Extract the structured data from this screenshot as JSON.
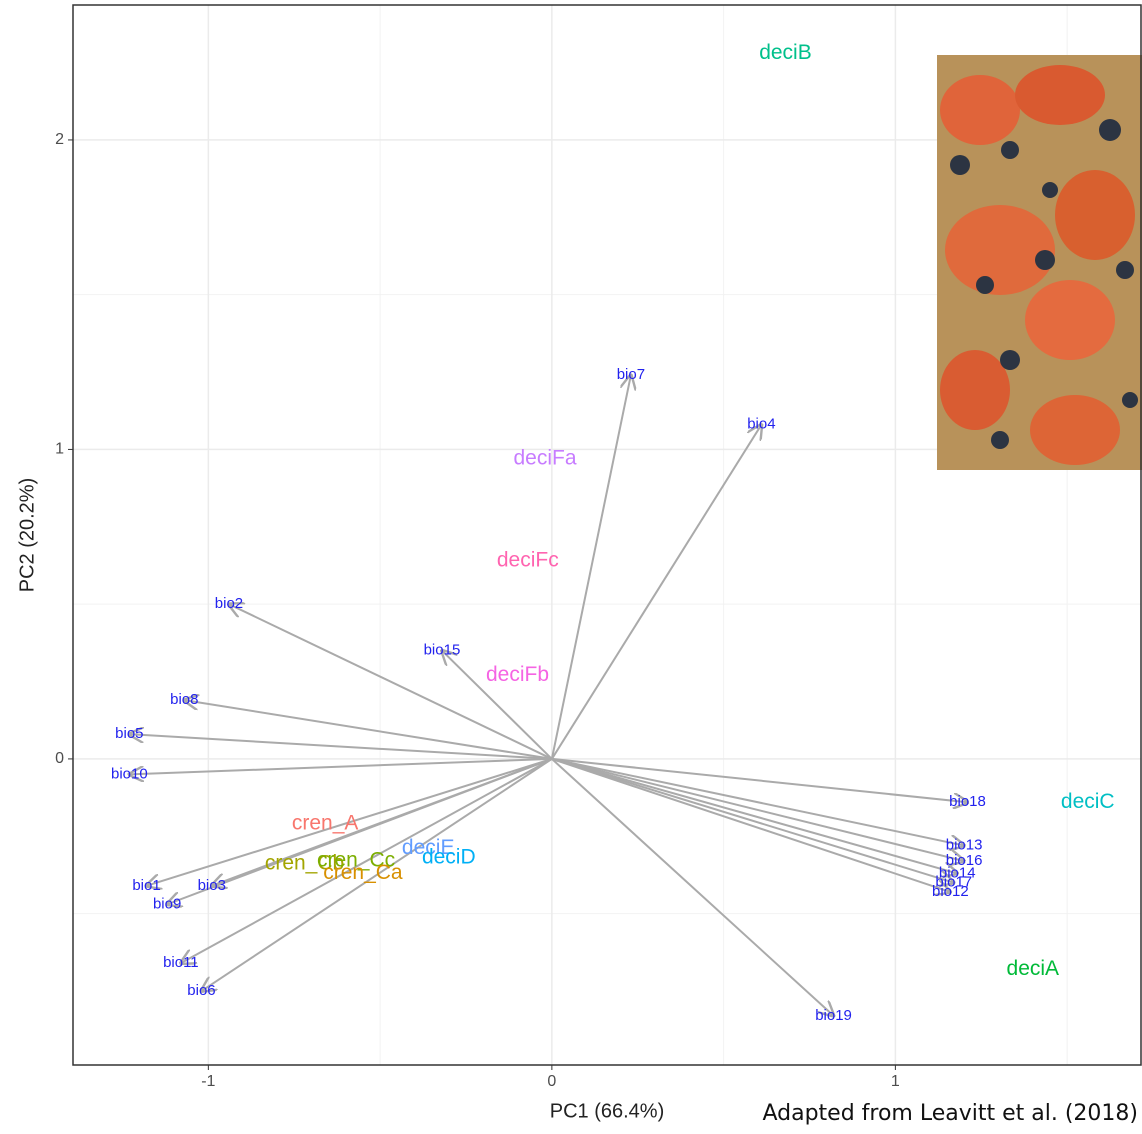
{
  "chart_data": {
    "type": "biplot",
    "x_label": "PC1 (66.4%)",
    "y_label": "PC2 (20.2%)",
    "xlim": [
      -1.394,
      1.715
    ],
    "ylim": [
      -0.989,
      2.436
    ],
    "xticks": [
      -1,
      0,
      1
    ],
    "yticks": [
      0,
      1,
      2
    ],
    "xminor": [
      -0.5,
      0.5,
      1.5
    ],
    "yminor": [
      -0.5,
      0.5,
      1.5
    ],
    "grid": true,
    "groups": {
      "names": [
        "deciB",
        "deciFa",
        "deciFc",
        "deciFb",
        "deciC",
        "deciA",
        "cren_A",
        "deciE",
        "deciD",
        "cren_Cb",
        "cren_Cc",
        "cren_Ca"
      ],
      "x": [
        0.68,
        -0.02,
        -0.07,
        -0.1,
        1.56,
        1.4,
        -0.66,
        -0.36,
        -0.3,
        -0.72,
        -0.57,
        -0.55
      ],
      "y": [
        2.28,
        0.97,
        0.64,
        0.27,
        -0.14,
        -0.68,
        -0.21,
        -0.29,
        -0.32,
        -0.34,
        -0.33,
        -0.37
      ],
      "colors": [
        "#00C08B",
        "#C77CFF",
        "#FF64B0",
        "#F564E3",
        "#00BFC4",
        "#00BA38",
        "#F8766D",
        "#619CFF",
        "#00B0F6",
        "#A3A500",
        "#7CAE00",
        "#D89000"
      ]
    },
    "loadings": {
      "names": [
        "bio7",
        "bio4",
        "bio2",
        "bio15",
        "bio8",
        "bio5",
        "bio10",
        "bio18",
        "bio13",
        "bio16",
        "bio14",
        "bio17",
        "bio12",
        "bio1",
        "bio9",
        "bio3",
        "bio11",
        "bio6",
        "bio19"
      ],
      "x": [
        0.23,
        0.61,
        -0.94,
        -0.32,
        -1.07,
        -1.23,
        -1.23,
        1.21,
        1.2,
        1.2,
        1.18,
        1.17,
        1.16,
        -1.18,
        -1.12,
        -0.99,
        -1.08,
        -1.02,
        0.82
      ],
      "y": [
        1.24,
        1.08,
        0.5,
        0.35,
        0.19,
        0.08,
        -0.05,
        -0.14,
        -0.28,
        -0.33,
        -0.37,
        -0.4,
        -0.43,
        -0.41,
        -0.47,
        -0.41,
        -0.66,
        -0.75,
        -0.83
      ],
      "arrow_color": "#aaaaaa",
      "label_color": "#2222ee"
    }
  },
  "caption": "Adapted from Leavitt et al. (2018)"
}
